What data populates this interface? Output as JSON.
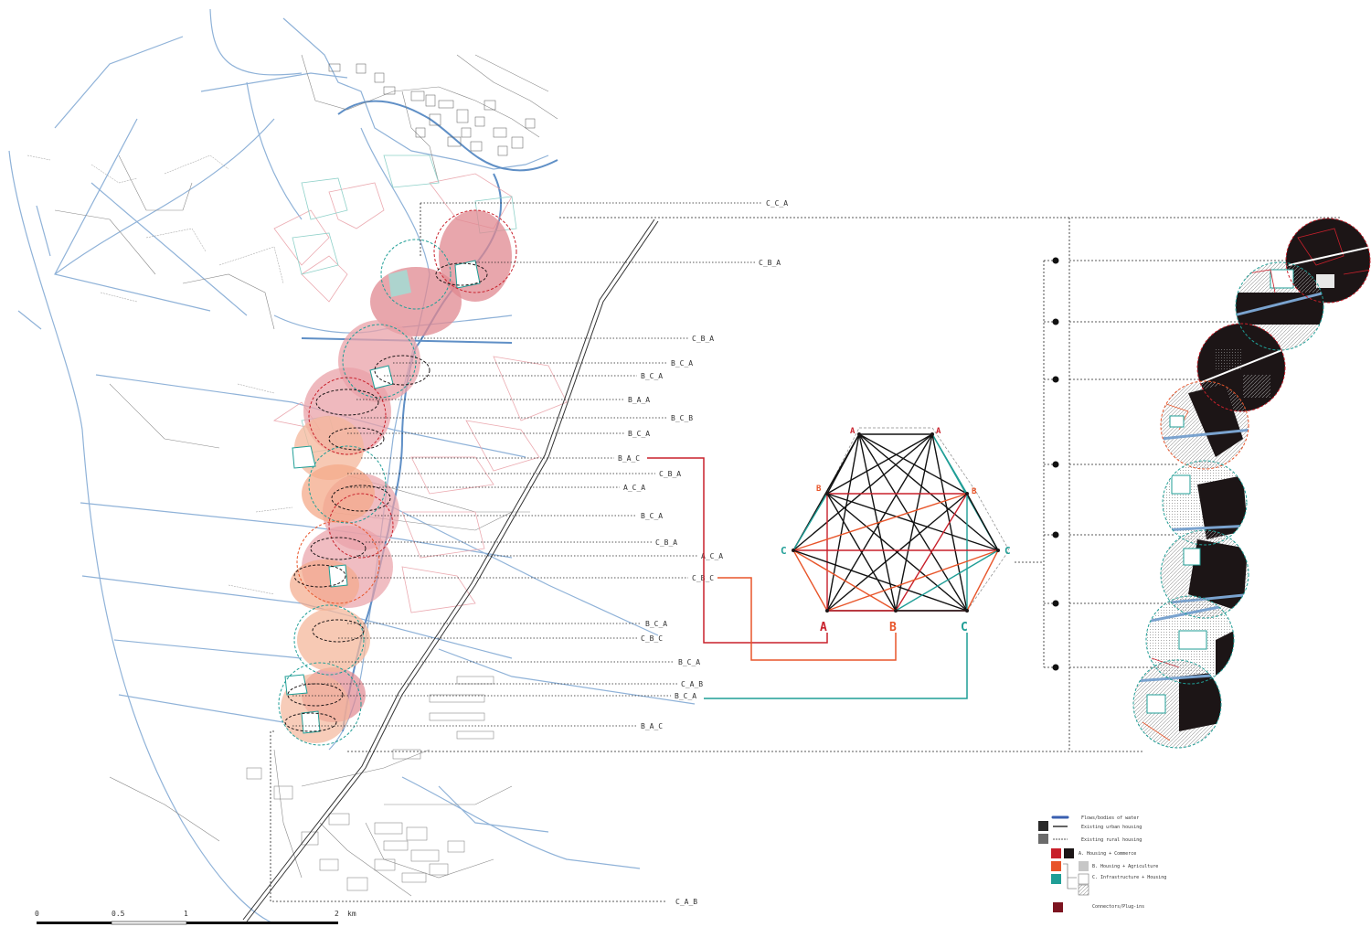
{
  "colors": {
    "A": "#c8202b",
    "B": "#e8552a",
    "C": "#1f9e96",
    "water": "#7aa3cf",
    "rail": "#333333",
    "pink_fill": "#e9a1a8",
    "orange_fill": "#f4b79b",
    "dark": "#1c1516",
    "connector": "#7d1420"
  },
  "pattern_labels": [
    "C_C_A",
    "C_B_A",
    "C_B_A",
    "B_C_A",
    "B_C_A",
    "B_A_A",
    "B_C_B",
    "B_C_A",
    "B_A_C",
    "C_B_A",
    "A_C_A",
    "B_C_A",
    "C_B_A",
    "A_C_A",
    "C_B_C",
    "B_C_A",
    "C_B_C",
    "B_C_A",
    "C_A_B",
    "B_C_A",
    "B_A_C",
    "C_A_B"
  ],
  "graph": {
    "nodes_top": [
      "A",
      "A"
    ],
    "nodes_mid": [
      "B",
      "B"
    ],
    "nodes_side": [
      "C",
      "C"
    ],
    "nodes_bottom": [
      "A",
      "B",
      "C"
    ]
  },
  "legend": [
    {
      "label": "Flows/bodies of water",
      "icon": "water-line"
    },
    {
      "label": "Existing urban housing",
      "icon": "dark-square"
    },
    {
      "label": "Existing rural housing",
      "icon": "grey-square"
    },
    {
      "label": "A. Housing + Commerce",
      "icon": "red-square"
    },
    {
      "label": "B. Housing + Agriculture",
      "icon": "orange-square"
    },
    {
      "label": "C. Infrastructure + Housing",
      "icon": "teal-square"
    },
    {
      "label": "Connectors/Plug-ins",
      "icon": "connector-square"
    }
  ],
  "scale_bar": {
    "ticks": [
      "0",
      "0.5",
      "1",
      "2"
    ],
    "unit": "km"
  }
}
